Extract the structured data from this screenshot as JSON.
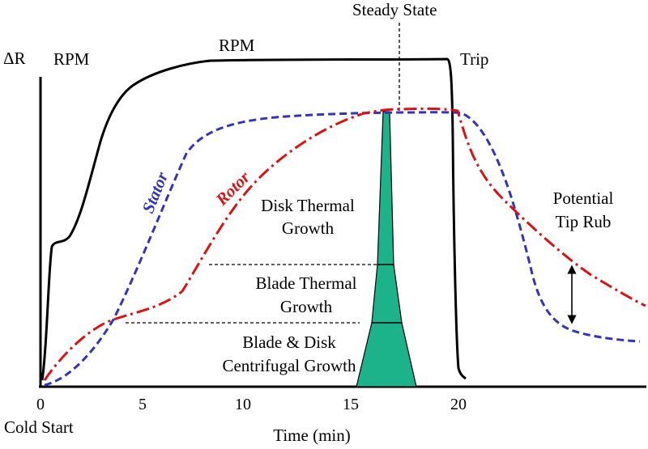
{
  "diagram": {
    "y_axis_label": "ΔR",
    "x_axis_label": "Time (min)",
    "origin_label": "Cold Start",
    "x_ticks": [
      "0",
      "5",
      "10",
      "15",
      "20"
    ],
    "labels": {
      "rpm_left": "RPM",
      "rpm_top": "RPM",
      "steady_state": "Steady State",
      "trip": "Trip",
      "stator": "Stator",
      "rotor": "Rotor",
      "disk_thermal_line1": "Disk Thermal",
      "disk_thermal_line2": "Growth",
      "blade_thermal_line1": "Blade Thermal",
      "blade_thermal_line2": "Growth",
      "centrifugal_line1": "Blade & Disk",
      "centrifugal_line2": "Centrifugal Growth",
      "tip_rub_line1": "Potential",
      "tip_rub_line2": "Tip Rub"
    },
    "colors": {
      "rpm": "#000000",
      "stator": "#3333bb",
      "rotor": "#dd1111",
      "blade_shape": "#1db38a"
    }
  }
}
